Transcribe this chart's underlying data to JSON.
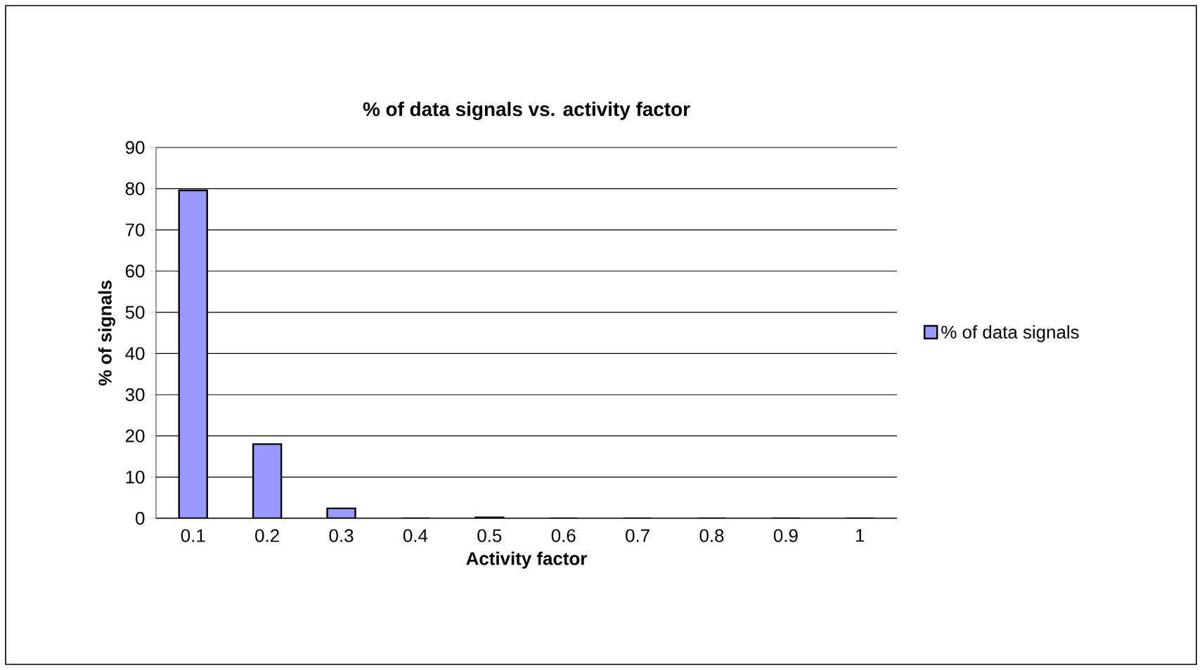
{
  "chart_data": {
    "type": "bar",
    "title": "% of data signals vs. activity factor",
    "xlabel": "Activity factor",
    "ylabel": "% of signals",
    "categories": [
      "0.1",
      "0.2",
      "0.3",
      "0.4",
      "0.5",
      "0.6",
      "0.7",
      "0.8",
      "0.9",
      "1"
    ],
    "series": [
      {
        "name": "% of data signals",
        "color": "#9999ff",
        "values": [
          79.6,
          18,
          2.4,
          0,
          0.2,
          0,
          0,
          0,
          0,
          0
        ]
      }
    ],
    "ylim": [
      0,
      90
    ],
    "yticks": [
      0,
      10,
      20,
      30,
      40,
      50,
      60,
      70,
      80,
      90
    ],
    "grid": "y",
    "legend": "right"
  }
}
